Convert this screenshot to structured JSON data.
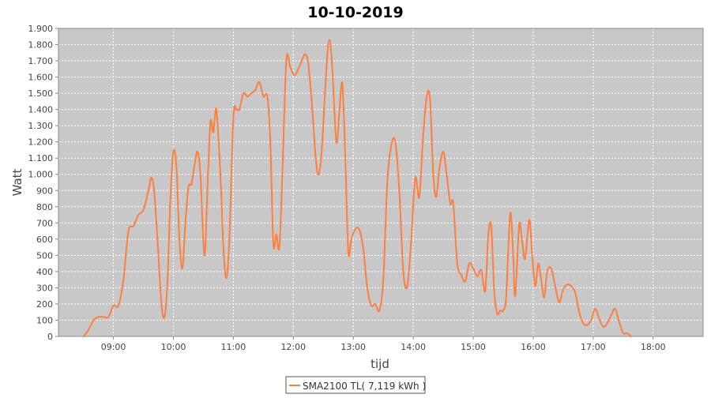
{
  "chart_data": {
    "type": "line",
    "title": "10-10-2019",
    "xlabel": "tijd",
    "ylabel": "Watt",
    "ylim": [
      0,
      1900
    ],
    "yticks": [
      0,
      100,
      200,
      300,
      400,
      500,
      600,
      700,
      800,
      900,
      1000,
      1100,
      1200,
      1300,
      1400,
      1500,
      1600,
      1700,
      1800,
      1900
    ],
    "ytick_labels": [
      "0",
      "100",
      "200",
      "300",
      "400",
      "500",
      "600",
      "700",
      "800",
      "900",
      "1.000",
      "1.100",
      "1.200",
      "1.300",
      "1.400",
      "1.500",
      "1.600",
      "1.700",
      "1.800",
      "1.900"
    ],
    "xlim": [
      "08:05",
      "18:50"
    ],
    "xticks": [
      "09:00",
      "10:00",
      "11:00",
      "12:00",
      "13:00",
      "14:00",
      "15:00",
      "16:00",
      "17:00",
      "18:00"
    ],
    "grid": true,
    "legend": "bottom",
    "series": [
      {
        "name": "SMA2100 TL( 7,119 kWh )",
        "color": "#ff7f3f",
        "points": [
          [
            "08:30",
            0
          ],
          [
            "08:35",
            40
          ],
          [
            "08:40",
            100
          ],
          [
            "08:45",
            120
          ],
          [
            "08:50",
            120
          ],
          [
            "08:55",
            120
          ],
          [
            "09:00",
            190
          ],
          [
            "09:05",
            190
          ],
          [
            "09:10",
            350
          ],
          [
            "09:15",
            650
          ],
          [
            "09:20",
            680
          ],
          [
            "09:25",
            750
          ],
          [
            "09:30",
            780
          ],
          [
            "09:35",
            900
          ],
          [
            "09:38",
            980
          ],
          [
            "09:41",
            880
          ],
          [
            "09:45",
            500
          ],
          [
            "09:48",
            200
          ],
          [
            "09:51",
            120
          ],
          [
            "09:54",
            330
          ],
          [
            "09:57",
            850
          ],
          [
            "10:00",
            1140
          ],
          [
            "10:03",
            1050
          ],
          [
            "10:06",
            600
          ],
          [
            "10:09",
            420
          ],
          [
            "10:12",
            700
          ],
          [
            "10:15",
            920
          ],
          [
            "10:18",
            940
          ],
          [
            "10:21",
            1050
          ],
          [
            "10:24",
            1140
          ],
          [
            "10:27",
            1000
          ],
          [
            "10:31",
            500
          ],
          [
            "10:34",
            900
          ],
          [
            "10:37",
            1320
          ],
          [
            "10:40",
            1260
          ],
          [
            "10:43",
            1400
          ],
          [
            "10:47",
            1000
          ],
          [
            "10:50",
            550
          ],
          [
            "10:53",
            360
          ],
          [
            "10:56",
            600
          ],
          [
            "11:00",
            1350
          ],
          [
            "11:03",
            1400
          ],
          [
            "11:06",
            1400
          ],
          [
            "11:10",
            1500
          ],
          [
            "11:14",
            1480
          ],
          [
            "11:18",
            1500
          ],
          [
            "11:22",
            1520
          ],
          [
            "11:26",
            1570
          ],
          [
            "11:30",
            1480
          ],
          [
            "11:34",
            1480
          ],
          [
            "11:37",
            1200
          ],
          [
            "11:40",
            570
          ],
          [
            "11:43",
            630
          ],
          [
            "11:46",
            550
          ],
          [
            "11:49",
            1000
          ],
          [
            "11:53",
            1700
          ],
          [
            "11:57",
            1660
          ],
          [
            "12:01",
            1610
          ],
          [
            "12:05",
            1650
          ],
          [
            "12:09",
            1710
          ],
          [
            "12:12",
            1740
          ],
          [
            "12:15",
            1680
          ],
          [
            "12:19",
            1400
          ],
          [
            "12:23",
            1060
          ],
          [
            "12:26",
            1010
          ],
          [
            "12:29",
            1200
          ],
          [
            "12:33",
            1650
          ],
          [
            "12:36",
            1830
          ],
          [
            "12:39",
            1650
          ],
          [
            "12:43",
            1200
          ],
          [
            "12:46",
            1380
          ],
          [
            "12:49",
            1560
          ],
          [
            "12:52",
            1100
          ],
          [
            "12:55",
            520
          ],
          [
            "12:58",
            600
          ],
          [
            "13:02",
            660
          ],
          [
            "13:06",
            660
          ],
          [
            "13:10",
            540
          ],
          [
            "13:14",
            300
          ],
          [
            "13:18",
            190
          ],
          [
            "13:22",
            200
          ],
          [
            "13:26",
            160
          ],
          [
            "13:30",
            350
          ],
          [
            "13:34",
            950
          ],
          [
            "13:38",
            1180
          ],
          [
            "13:42",
            1200
          ],
          [
            "13:46",
            900
          ],
          [
            "13:50",
            400
          ],
          [
            "13:54",
            310
          ],
          [
            "13:58",
            600
          ],
          [
            "14:02",
            980
          ],
          [
            "14:06",
            860
          ],
          [
            "14:10",
            1250
          ],
          [
            "14:14",
            1500
          ],
          [
            "14:17",
            1440
          ],
          [
            "14:20",
            1000
          ],
          [
            "14:23",
            860
          ],
          [
            "14:26",
            1030
          ],
          [
            "14:30",
            1140
          ],
          [
            "14:33",
            1020
          ],
          [
            "14:37",
            820
          ],
          [
            "14:40",
            820
          ],
          [
            "14:44",
            450
          ],
          [
            "14:48",
            380
          ],
          [
            "14:52",
            340
          ],
          [
            "14:56",
            450
          ],
          [
            "15:00",
            420
          ],
          [
            "15:04",
            370
          ],
          [
            "15:08",
            410
          ],
          [
            "15:12",
            280
          ],
          [
            "15:15",
            620
          ],
          [
            "15:18",
            680
          ],
          [
            "15:21",
            280
          ],
          [
            "15:24",
            140
          ],
          [
            "15:27",
            160
          ],
          [
            "15:30",
            160
          ],
          [
            "15:33",
            250
          ],
          [
            "15:37",
            760
          ],
          [
            "15:40",
            500
          ],
          [
            "15:42",
            250
          ],
          [
            "15:46",
            690
          ],
          [
            "15:49",
            580
          ],
          [
            "15:52",
            480
          ],
          [
            "15:56",
            720
          ],
          [
            "15:59",
            500
          ],
          [
            "16:02",
            310
          ],
          [
            "16:05",
            450
          ],
          [
            "16:08",
            350
          ],
          [
            "16:11",
            240
          ],
          [
            "16:14",
            400
          ],
          [
            "16:18",
            420
          ],
          [
            "16:22",
            310
          ],
          [
            "16:26",
            210
          ],
          [
            "16:30",
            290
          ],
          [
            "16:34",
            320
          ],
          [
            "16:38",
            310
          ],
          [
            "16:42",
            270
          ],
          [
            "16:46",
            150
          ],
          [
            "16:50",
            80
          ],
          [
            "16:54",
            70
          ],
          [
            "16:58",
            100
          ],
          [
            "17:02",
            170
          ],
          [
            "17:06",
            110
          ],
          [
            "17:10",
            60
          ],
          [
            "17:14",
            80
          ],
          [
            "17:18",
            130
          ],
          [
            "17:22",
            170
          ],
          [
            "17:26",
            90
          ],
          [
            "17:30",
            20
          ],
          [
            "17:34",
            20
          ],
          [
            "17:38",
            0
          ]
        ]
      }
    ]
  }
}
